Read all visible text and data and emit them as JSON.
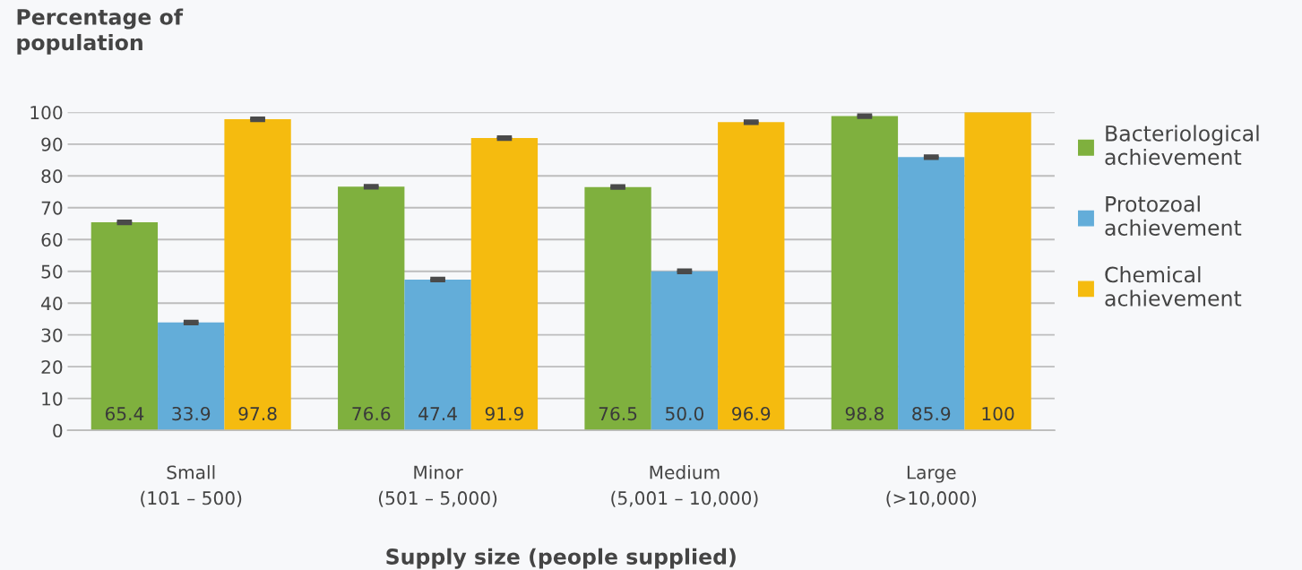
{
  "chart_data": {
    "type": "bar",
    "ylabel": "Percentage of\npopulation",
    "xlabel": "Supply size (people supplied)",
    "categories": [
      "Small\n(101 – 500)",
      "Minor\n(501 – 5,000)",
      "Medium\n(5,001 – 10,000)",
      "Large\n(>10,000)"
    ],
    "series": [
      {
        "name": "Bacteriological\nachievement",
        "color": "#7fb03e",
        "values": [
          65.4,
          76.6,
          76.5,
          98.8
        ],
        "errors": [
          0.3,
          0.3,
          0.3,
          0.3
        ]
      },
      {
        "name": "Protozoal\nachievement",
        "color": "#63add9",
        "values": [
          33.9,
          47.4,
          50.0,
          85.9
        ],
        "errors": [
          0.3,
          0.3,
          0.3,
          0.3
        ]
      },
      {
        "name": "Chemical\nachievement",
        "color": "#f5bb0f",
        "values": [
          97.8,
          91.9,
          96.9,
          100
        ],
        "errors": [
          0.3,
          0.3,
          0.3,
          null
        ]
      }
    ],
    "value_labels": [
      [
        "65.4",
        "76.6",
        "76.5",
        "98.8"
      ],
      [
        "33.9",
        "47.4",
        "50.0",
        "85.9"
      ],
      [
        "97.8",
        "91.9",
        "96.9",
        "100"
      ]
    ],
    "ylim": [
      0,
      100
    ],
    "yticks": [
      0,
      10,
      20,
      30,
      40,
      50,
      60,
      70,
      80,
      90,
      100
    ],
    "grid": "y",
    "legend": "right"
  }
}
